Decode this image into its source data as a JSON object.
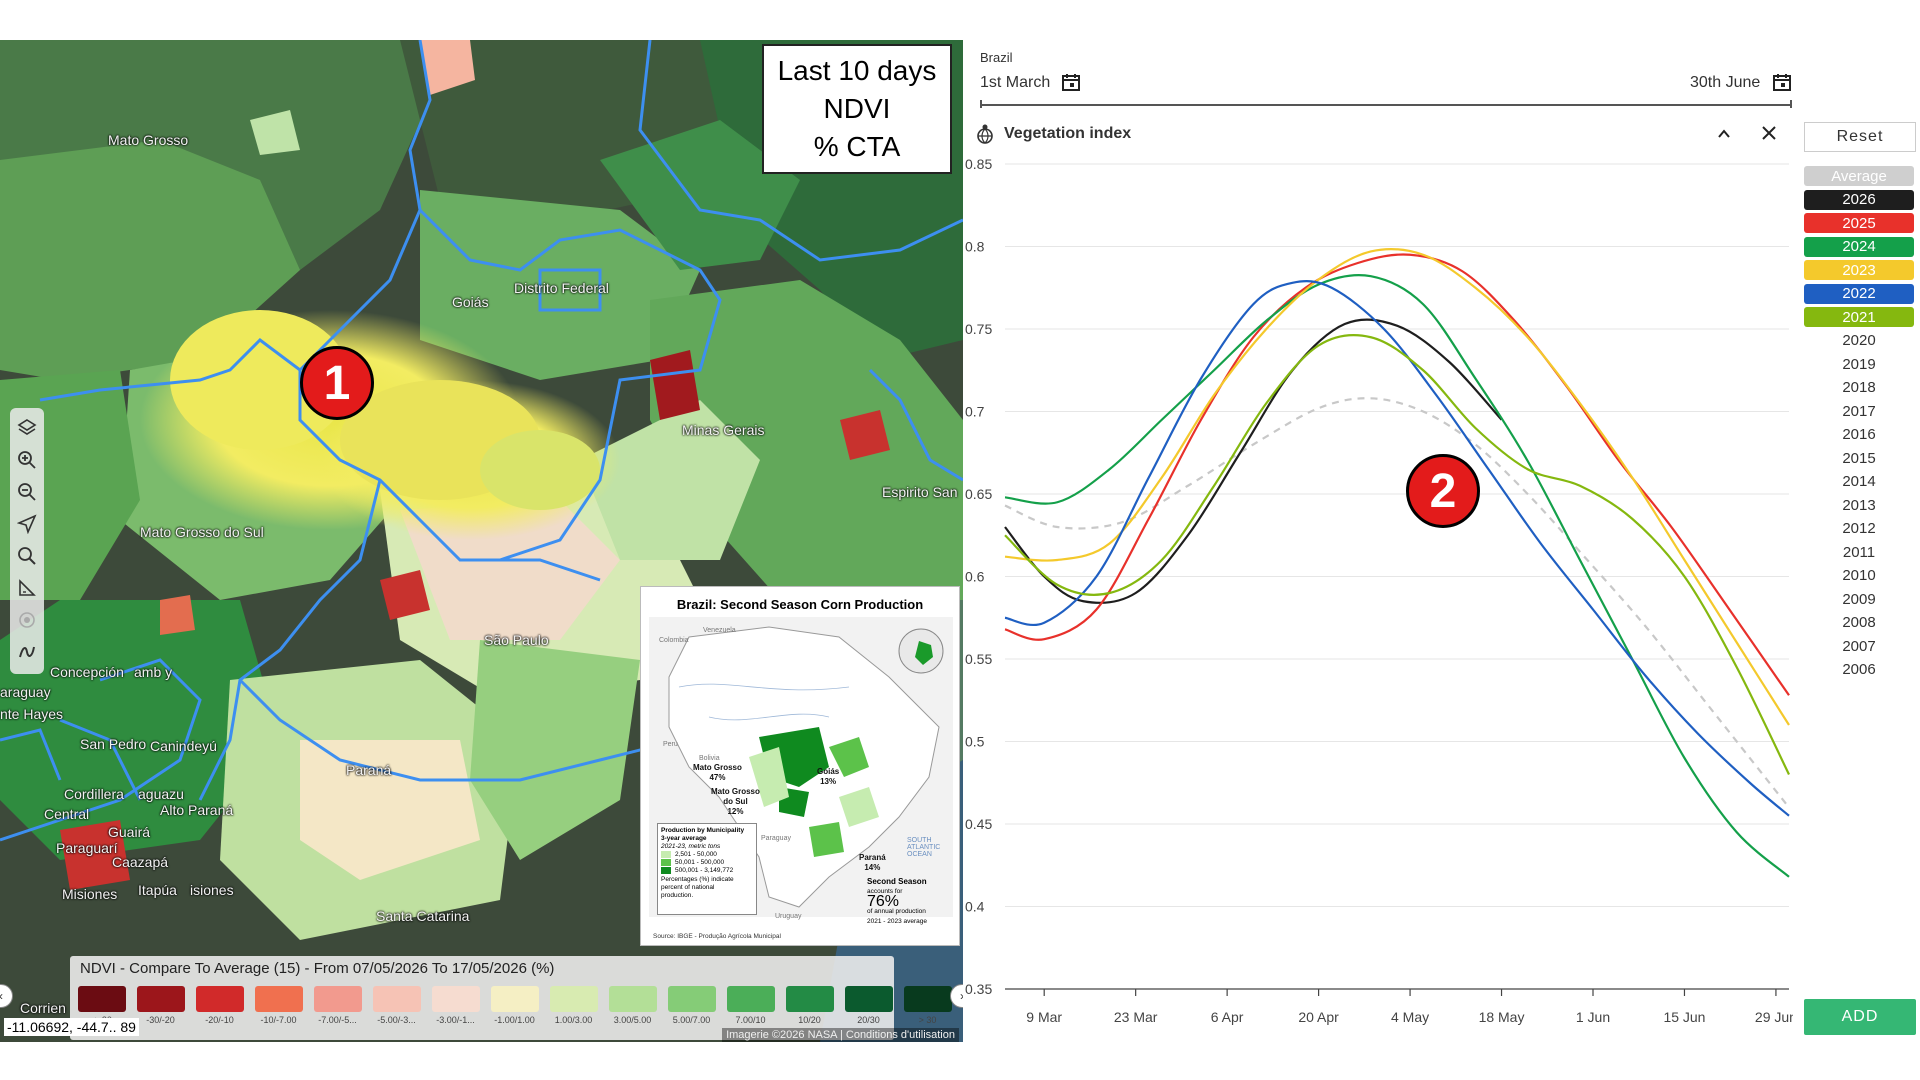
{
  "map": {
    "info_box": {
      "line1": "Last 10 days",
      "line2": "NDVI",
      "line3": "% CTA"
    },
    "callout_1": "1",
    "labels": {
      "mato_grosso": "Mato Grosso",
      "goias": "Goiás",
      "distrito_federal": "Distrito Federal",
      "minas_gerais": "Minas Gerais",
      "espirito_santo": "Espirito San",
      "mato_grosso_do_sul": "Mato Grosso do Sul",
      "sao_paulo": "São Paulo",
      "concepcion": "Concepción",
      "paraguay": "araguay",
      "hayes": "nte Hayes",
      "san_pedro": "San Pedro",
      "canindeyu": "Canindeyú",
      "cordillera": "Cordillera",
      "caaguazu": "aguazu",
      "alto_parana": "Alto Paraná",
      "central": "Central",
      "paraguari": "Paraguarí",
      "guaira": "Guairá",
      "caazapa": "Caazapá",
      "parana": "Paraná",
      "misiones": "Misiones",
      "itapua": "Itapúa",
      "misiones2": "isiones",
      "santa_catarina": "Santa Catarina",
      "corrientes": "Corrien",
      "amb": "amb y"
    },
    "inset": {
      "title": "Brazil: Second Season Corn Production",
      "countries": {
        "colombia": "Colombia",
        "venezuela": "Venezuela",
        "peru": "Peru",
        "bolivia": "Bolivia",
        "paraguay": "Paraguay",
        "uruguay": "Uruguay",
        "ocean": "SOUTH ATLANTIC OCEAN"
      },
      "regions": {
        "mato_grosso": "Mato Grosso",
        "mato_grosso_pct": "47%",
        "goias": "Goiás",
        "goias_pct": "13%",
        "mgds": "Mato Grosso",
        "mgds2": "do Sul",
        "mgds_pct": "12%",
        "parana": "Paraná",
        "parana_pct": "14%"
      },
      "legend": {
        "title1": "Production by Municipality",
        "title2": "3-year average",
        "subtitle": "2021-23, metric tons",
        "items": [
          "2,501 - 50,000",
          "50,001 - 500,000",
          "500,001 - 3,149,772"
        ],
        "colors": [
          "#c6ecb0",
          "#5cc24a",
          "#0f8a1f"
        ],
        "note1": "Percentages (%) indicate",
        "note2": "percent of national",
        "note3": "production."
      },
      "second_season": {
        "line1": "Second Season",
        "line2": "accounts for",
        "pct": "76%",
        "line3": "of annual production",
        "line4": "2021 - 2023 average"
      },
      "source": "Source: IBGE - Produção Agrícola Municipal"
    },
    "tools": [
      "layers-icon",
      "zoom-in-icon",
      "zoom-out-icon",
      "locate-icon",
      "search-icon",
      "measure-icon",
      "target-icon",
      "draw-icon"
    ],
    "legend": {
      "title": "NDVI - Compare To Average (15) - From 07/05/2026 To 17/05/2026 (%)",
      "items": [
        {
          "label": "< -30",
          "color": "#6b0c12"
        },
        {
          "label": "-30/-20",
          "color": "#9c161b"
        },
        {
          "label": "-20/-10",
          "color": "#d12a2a"
        },
        {
          "label": "-10/-7.00",
          "color": "#f0704f"
        },
        {
          "label": "-7.00/-5...",
          "color": "#f29a8e"
        },
        {
          "label": "-5.00/-3...",
          "color": "#f6c3b5"
        },
        {
          "label": "-3.00/-1...",
          "color": "#f6dcd0"
        },
        {
          "label": "-1.00/1.00",
          "color": "#f5efc4"
        },
        {
          "label": "1.00/3.00",
          "color": "#d8ebb1"
        },
        {
          "label": "3.00/5.00",
          "color": "#b3df97"
        },
        {
          "label": "5.00/7.00",
          "color": "#85cc77"
        },
        {
          "label": "7.00/10",
          "color": "#4bae58"
        },
        {
          "label": "10/20",
          "color": "#238b45"
        },
        {
          "label": "20/30",
          "color": "#0b5a2e"
        },
        {
          "label": "> 30",
          "color": "#083a1e"
        }
      ]
    },
    "coords": "-11.06692, -44.7.. 89",
    "attribution": "Imagerie ©2026 NASA | Conditions d'utilisation"
  },
  "chart_panel": {
    "region": "Brazil",
    "start_date": "1st March",
    "end_date": "30th June",
    "title": "Vegetation index",
    "reset_label": "Reset",
    "add_label": "ADD",
    "callout_2": "2",
    "years": [
      {
        "label": "Average",
        "bg": "#cfcfcf",
        "fg": "#ffffff",
        "active": true
      },
      {
        "label": "2026",
        "bg": "#1e1e1e",
        "fg": "#ffffff",
        "active": true
      },
      {
        "label": "2025",
        "bg": "#e8312b",
        "fg": "#ffffff",
        "active": true
      },
      {
        "label": "2024",
        "bg": "#14a04a",
        "fg": "#ffffff",
        "active": true
      },
      {
        "label": "2023",
        "bg": "#f4c92c",
        "fg": "#ffffff",
        "active": true
      },
      {
        "label": "2022",
        "bg": "#1f5fc2",
        "fg": "#ffffff",
        "active": true
      },
      {
        "label": "2021",
        "bg": "#85b80f",
        "fg": "#ffffff",
        "active": true
      },
      {
        "label": "2020",
        "bg": "none",
        "fg": "#333333",
        "active": false
      },
      {
        "label": "2019",
        "bg": "none",
        "fg": "#333333",
        "active": false
      },
      {
        "label": "2018",
        "bg": "none",
        "fg": "#333333",
        "active": false
      },
      {
        "label": "2017",
        "bg": "none",
        "fg": "#333333",
        "active": false
      },
      {
        "label": "2016",
        "bg": "none",
        "fg": "#333333",
        "active": false
      },
      {
        "label": "2015",
        "bg": "none",
        "fg": "#333333",
        "active": false
      },
      {
        "label": "2014",
        "bg": "none",
        "fg": "#333333",
        "active": false
      },
      {
        "label": "2013",
        "bg": "none",
        "fg": "#333333",
        "active": false
      },
      {
        "label": "2012",
        "bg": "none",
        "fg": "#333333",
        "active": false
      },
      {
        "label": "2011",
        "bg": "none",
        "fg": "#333333",
        "active": false
      },
      {
        "label": "2010",
        "bg": "none",
        "fg": "#333333",
        "active": false
      },
      {
        "label": "2009",
        "bg": "none",
        "fg": "#333333",
        "active": false
      },
      {
        "label": "2008",
        "bg": "none",
        "fg": "#333333",
        "active": false
      },
      {
        "label": "2007",
        "bg": "none",
        "fg": "#333333",
        "active": false
      },
      {
        "label": "2006",
        "bg": "none",
        "fg": "#333333",
        "active": false
      }
    ]
  },
  "chart_data": {
    "type": "line",
    "title": "Vegetation index",
    "x_ticks": [
      "9 Mar",
      "23 Mar",
      "6 Apr",
      "20 Apr",
      "4 May",
      "18 May",
      "1 Jun",
      "15 Jun",
      "29 Jun"
    ],
    "x_tick_days": [
      8,
      22,
      36,
      50,
      64,
      78,
      92,
      106,
      120
    ],
    "x_unit": "days after 1 March",
    "xlim": [
      2,
      122
    ],
    "y_ticks": [
      0.35,
      0.4,
      0.45,
      0.5,
      0.55,
      0.6,
      0.65,
      0.7,
      0.75,
      0.8,
      0.85
    ],
    "ylim": [
      0.35,
      0.85
    ],
    "grid": true,
    "series": [
      {
        "name": "Average",
        "color": "#c8c8c8",
        "dashed": true,
        "x": [
          2,
          10,
          20,
          30,
          40,
          50,
          58,
          66,
          74,
          82,
          90,
          100,
          110,
          122
        ],
        "y": [
          0.643,
          0.63,
          0.633,
          0.655,
          0.68,
          0.702,
          0.708,
          0.7,
          0.68,
          0.65,
          0.615,
          0.57,
          0.52,
          0.46
        ]
      },
      {
        "name": "2026",
        "color": "#1e1e1e",
        "x": [
          2,
          8,
          14,
          22,
          30,
          38,
          46,
          54,
          62,
          70,
          78
        ],
        "y": [
          0.63,
          0.6,
          0.585,
          0.59,
          0.625,
          0.675,
          0.725,
          0.753,
          0.752,
          0.73,
          0.695
        ]
      },
      {
        "name": "2025",
        "color": "#e8312b",
        "x": [
          2,
          8,
          16,
          24,
          32,
          40,
          48,
          56,
          64,
          72,
          80,
          88,
          96,
          104,
          112,
          122
        ],
        "y": [
          0.568,
          0.562,
          0.58,
          0.635,
          0.695,
          0.745,
          0.775,
          0.79,
          0.795,
          0.785,
          0.755,
          0.715,
          0.67,
          0.63,
          0.585,
          0.528
        ]
      },
      {
        "name": "2024",
        "color": "#14a04a",
        "x": [
          2,
          10,
          18,
          26,
          34,
          42,
          50,
          58,
          66,
          74,
          82,
          90,
          98,
          106,
          114,
          122
        ],
        "y": [
          0.648,
          0.645,
          0.665,
          0.695,
          0.725,
          0.755,
          0.777,
          0.782,
          0.765,
          0.72,
          0.67,
          0.61,
          0.55,
          0.49,
          0.445,
          0.418
        ]
      },
      {
        "name": "2023",
        "color": "#f4c92c",
        "x": [
          2,
          10,
          18,
          26,
          34,
          42,
          50,
          58,
          66,
          74,
          82,
          90,
          98,
          106,
          114,
          122
        ],
        "y": [
          0.612,
          0.61,
          0.62,
          0.66,
          0.71,
          0.75,
          0.78,
          0.797,
          0.795,
          0.775,
          0.745,
          0.705,
          0.66,
          0.61,
          0.56,
          0.51
        ]
      },
      {
        "name": "2022",
        "color": "#1f5fc2",
        "x": [
          2,
          8,
          16,
          24,
          32,
          40,
          46,
          52,
          60,
          68,
          76,
          84,
          92,
          100,
          108,
          116,
          122
        ],
        "y": [
          0.575,
          0.572,
          0.6,
          0.66,
          0.72,
          0.765,
          0.778,
          0.775,
          0.75,
          0.71,
          0.665,
          0.62,
          0.58,
          0.54,
          0.505,
          0.475,
          0.455
        ]
      },
      {
        "name": "2021",
        "color": "#85b80f",
        "x": [
          2,
          10,
          18,
          26,
          34,
          42,
          50,
          58,
          66,
          74,
          82,
          90,
          98,
          106,
          114,
          122
        ],
        "y": [
          0.625,
          0.595,
          0.59,
          0.61,
          0.655,
          0.705,
          0.74,
          0.745,
          0.725,
          0.69,
          0.665,
          0.655,
          0.635,
          0.6,
          0.545,
          0.48
        ]
      }
    ]
  }
}
